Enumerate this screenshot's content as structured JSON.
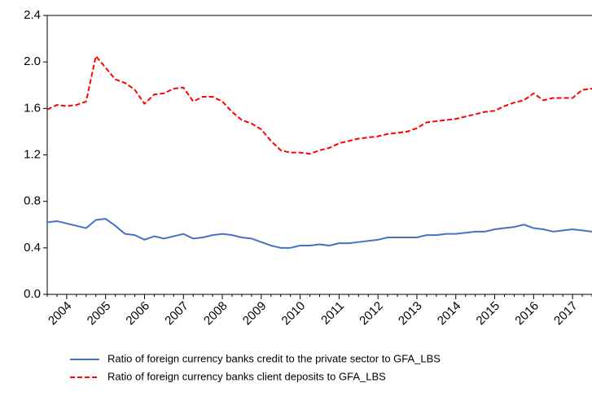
{
  "chart_data": {
    "type": "line",
    "categories": [
      null,
      null,
      "2004",
      null,
      null,
      null,
      "2005",
      null,
      null,
      null,
      "2006",
      null,
      null,
      null,
      "2007",
      null,
      null,
      null,
      "2008",
      null,
      null,
      null,
      "2009",
      null,
      null,
      null,
      "2010",
      null,
      null,
      null,
      "2011",
      null,
      null,
      null,
      "2012",
      null,
      null,
      null,
      "2013",
      null,
      null,
      null,
      "2014",
      null,
      null,
      null,
      "2015",
      null,
      null,
      null,
      "2016",
      null,
      null,
      null,
      "2017",
      null,
      null
    ],
    "series": [
      {
        "name": "Ratio of foreign currency banks credit to the private sector to GFA_LBS",
        "color": "#4472c4",
        "style": "solid",
        "values": [
          0.62,
          0.63,
          0.61,
          0.59,
          0.57,
          0.64,
          0.65,
          0.59,
          0.52,
          0.51,
          0.47,
          0.5,
          0.48,
          0.5,
          0.52,
          0.48,
          0.49,
          0.51,
          0.52,
          0.51,
          0.49,
          0.48,
          0.45,
          0.42,
          0.4,
          0.4,
          0.42,
          0.42,
          0.43,
          0.42,
          0.44,
          0.44,
          0.45,
          0.46,
          0.47,
          0.49,
          0.49,
          0.49,
          0.49,
          0.51,
          0.51,
          0.52,
          0.52,
          0.53,
          0.54,
          0.54,
          0.56,
          0.57,
          0.58,
          0.6,
          0.57,
          0.56,
          0.54,
          0.55,
          0.56,
          0.55,
          0.54
        ]
      },
      {
        "name": "Ratio of foreign currency banks client deposits to GFA_LBS",
        "color": "#ff0000",
        "style": "dashed",
        "values": [
          1.59,
          1.63,
          1.62,
          1.63,
          1.66,
          2.05,
          1.95,
          1.85,
          1.82,
          1.76,
          1.64,
          1.72,
          1.73,
          1.77,
          1.78,
          1.66,
          1.7,
          1.7,
          1.66,
          1.57,
          1.5,
          1.47,
          1.42,
          1.32,
          1.24,
          1.22,
          1.22,
          1.21,
          1.24,
          1.26,
          1.3,
          1.32,
          1.34,
          1.35,
          1.36,
          1.38,
          1.39,
          1.4,
          1.43,
          1.48,
          1.49,
          1.5,
          1.51,
          1.53,
          1.55,
          1.57,
          1.58,
          1.62,
          1.65,
          1.67,
          1.73,
          1.67,
          1.69,
          1.69,
          1.69,
          1.76,
          1.77
        ]
      }
    ],
    "ylim": [
      0,
      2.4
    ],
    "yticks": [
      {
        "value": 0,
        "label": "0.0"
      },
      0.4,
      0.8,
      1.2,
      1.6,
      {
        "value": 2,
        "label": "2.0"
      },
      2.4
    ],
    "grid": false,
    "legend": "bottom"
  }
}
